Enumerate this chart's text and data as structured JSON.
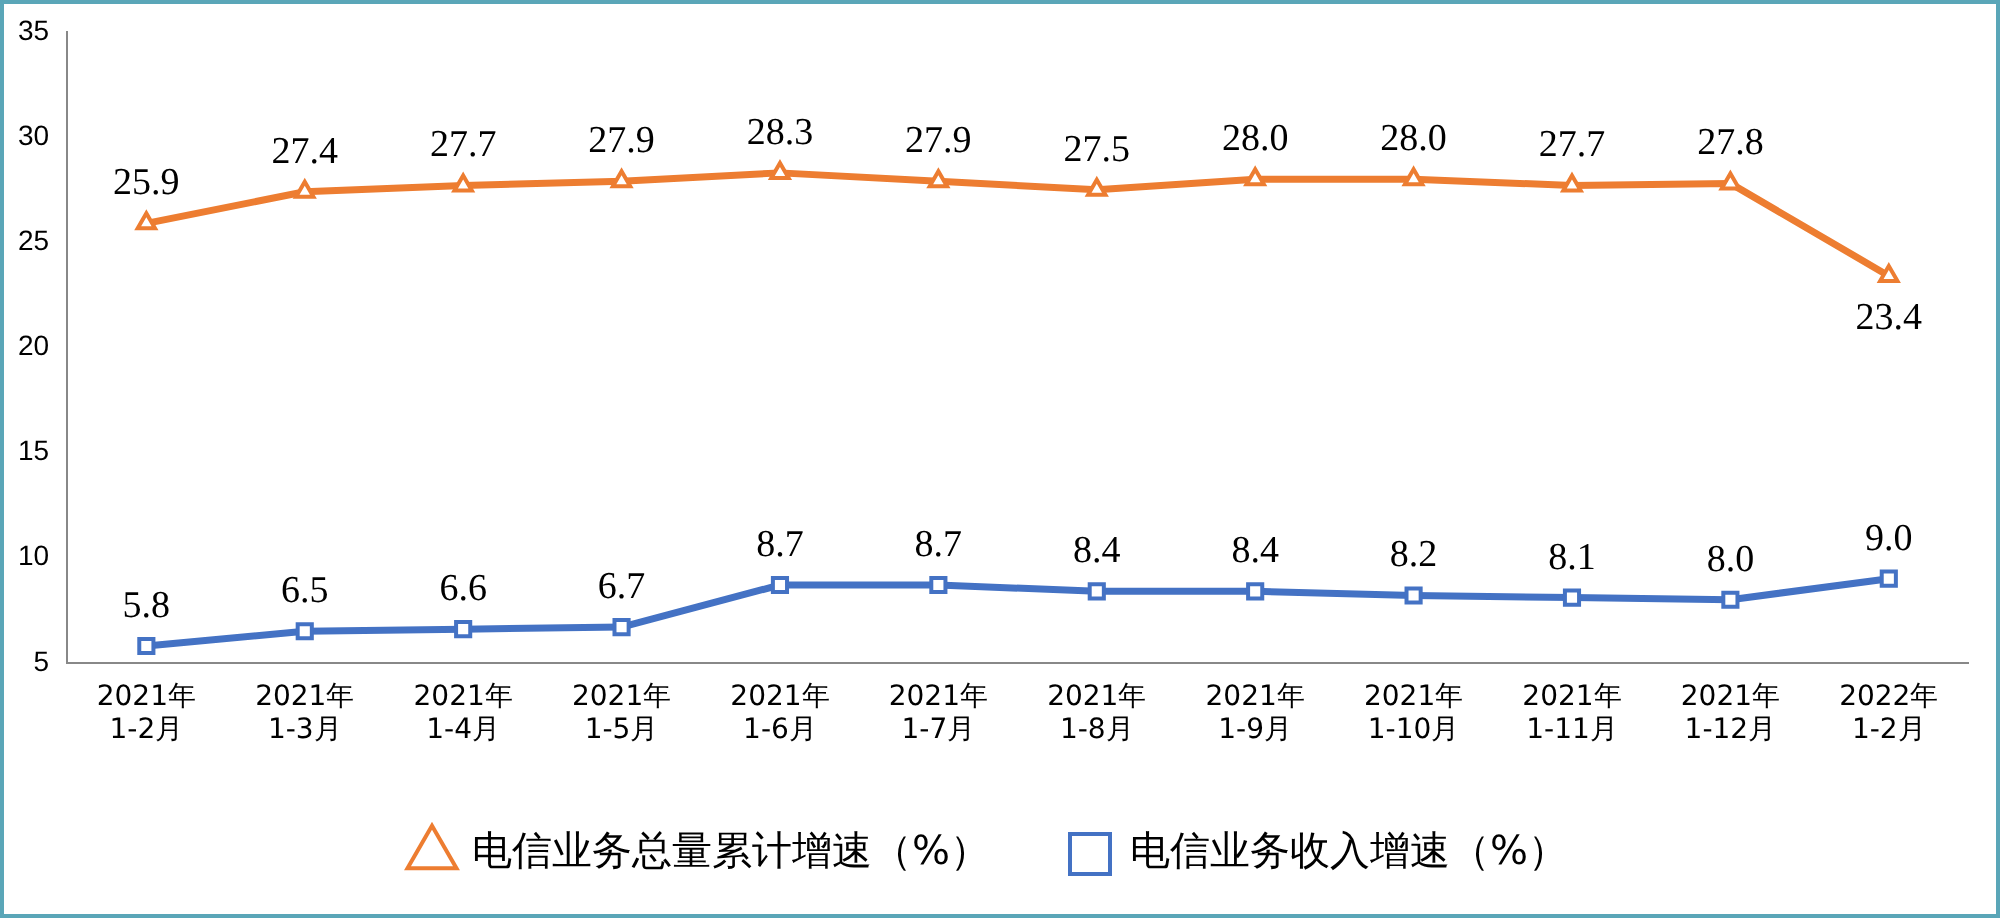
{
  "chart_data": {
    "type": "line",
    "categories": [
      "2021年\n1-2月",
      "2021年\n1-3月",
      "2021年\n1-4月",
      "2021年\n1-5月",
      "2021年\n1-6月",
      "2021年\n1-7月",
      "2021年\n1-8月",
      "2021年\n1-9月",
      "2021年\n1-10月",
      "2021年\n1-11月",
      "2021年\n1-12月",
      "2022年\n1-2月"
    ],
    "series": [
      {
        "name": "电信业务总量累计增速（%）",
        "color": "#ed7d31",
        "marker": "triangle",
        "values": [
          25.9,
          27.4,
          27.7,
          27.9,
          28.3,
          27.9,
          27.5,
          28.0,
          28.0,
          27.7,
          27.8,
          23.4
        ],
        "value_labels": [
          "25.9",
          "27.4",
          "27.7",
          "27.9",
          "28.3",
          "27.9",
          "27.5",
          "28.0",
          "28.0",
          "27.7",
          "27.8",
          "23.4"
        ]
      },
      {
        "name": "电信业务收入增速（%）",
        "color": "#4472c4",
        "marker": "square",
        "values": [
          5.8,
          6.5,
          6.6,
          6.7,
          8.7,
          8.7,
          8.4,
          8.4,
          8.2,
          8.1,
          8.0,
          9.0
        ],
        "value_labels": [
          "5.8",
          "6.5",
          "6.6",
          "6.7",
          "8.7",
          "8.7",
          "8.4",
          "8.4",
          "8.2",
          "8.1",
          "8.0",
          "9.0"
        ]
      }
    ],
    "ylim": [
      5,
      35
    ],
    "yticks": [
      5,
      10,
      15,
      20,
      25,
      30,
      35
    ],
    "grid": false,
    "legend": "bottom"
  }
}
